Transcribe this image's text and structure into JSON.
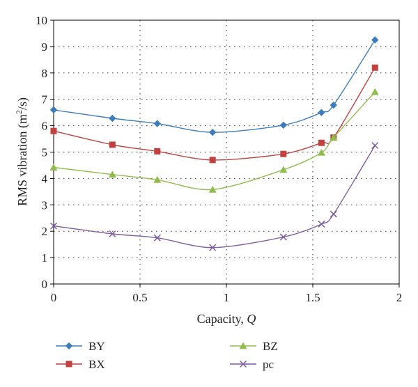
{
  "chart_data": {
    "type": "line",
    "xlabel": "Capacity, ",
    "xlabel_italic": "Q",
    "ylabel_prefix": "RMS vibration (m",
    "ylabel_sup": "2",
    "ylabel_suffix": "/s)",
    "xlim": [
      0,
      2
    ],
    "ylim": [
      0,
      10
    ],
    "xticks": [
      0,
      0.5,
      1,
      1.5,
      2
    ],
    "xtick_labels": [
      "0",
      "0.5",
      "1",
      "1.5",
      "2"
    ],
    "yticks": [
      0,
      1,
      2,
      3,
      4,
      5,
      6,
      7,
      8,
      9,
      10
    ],
    "ytick_labels": [
      "0",
      "1",
      "2",
      "3",
      "4",
      "5",
      "6",
      "7",
      "8",
      "9",
      "10"
    ],
    "grid": "dotted",
    "legend_position": "bottom",
    "x": [
      0,
      0.34,
      0.6,
      0.92,
      1.33,
      1.55,
      1.62,
      1.86
    ],
    "series": [
      {
        "name": "BY",
        "color": "#3d7dbf",
        "marker": "diamond",
        "values": [
          6.6,
          6.28,
          6.08,
          5.75,
          6.02,
          6.5,
          6.78,
          9.25
        ]
      },
      {
        "name": "BX",
        "color": "#c0413e",
        "marker": "square",
        "values": [
          5.8,
          5.28,
          5.03,
          4.7,
          4.93,
          5.35,
          5.55,
          8.2
        ]
      },
      {
        "name": "BZ",
        "color": "#90bc4c",
        "marker": "triangle",
        "values": [
          4.42,
          4.15,
          3.95,
          3.58,
          4.33,
          4.98,
          5.55,
          7.28
        ]
      },
      {
        "name": "pc",
        "color": "#7d5ca0",
        "marker": "x",
        "values": [
          2.2,
          1.9,
          1.75,
          1.38,
          1.78,
          2.27,
          2.65,
          5.25
        ]
      }
    ]
  }
}
